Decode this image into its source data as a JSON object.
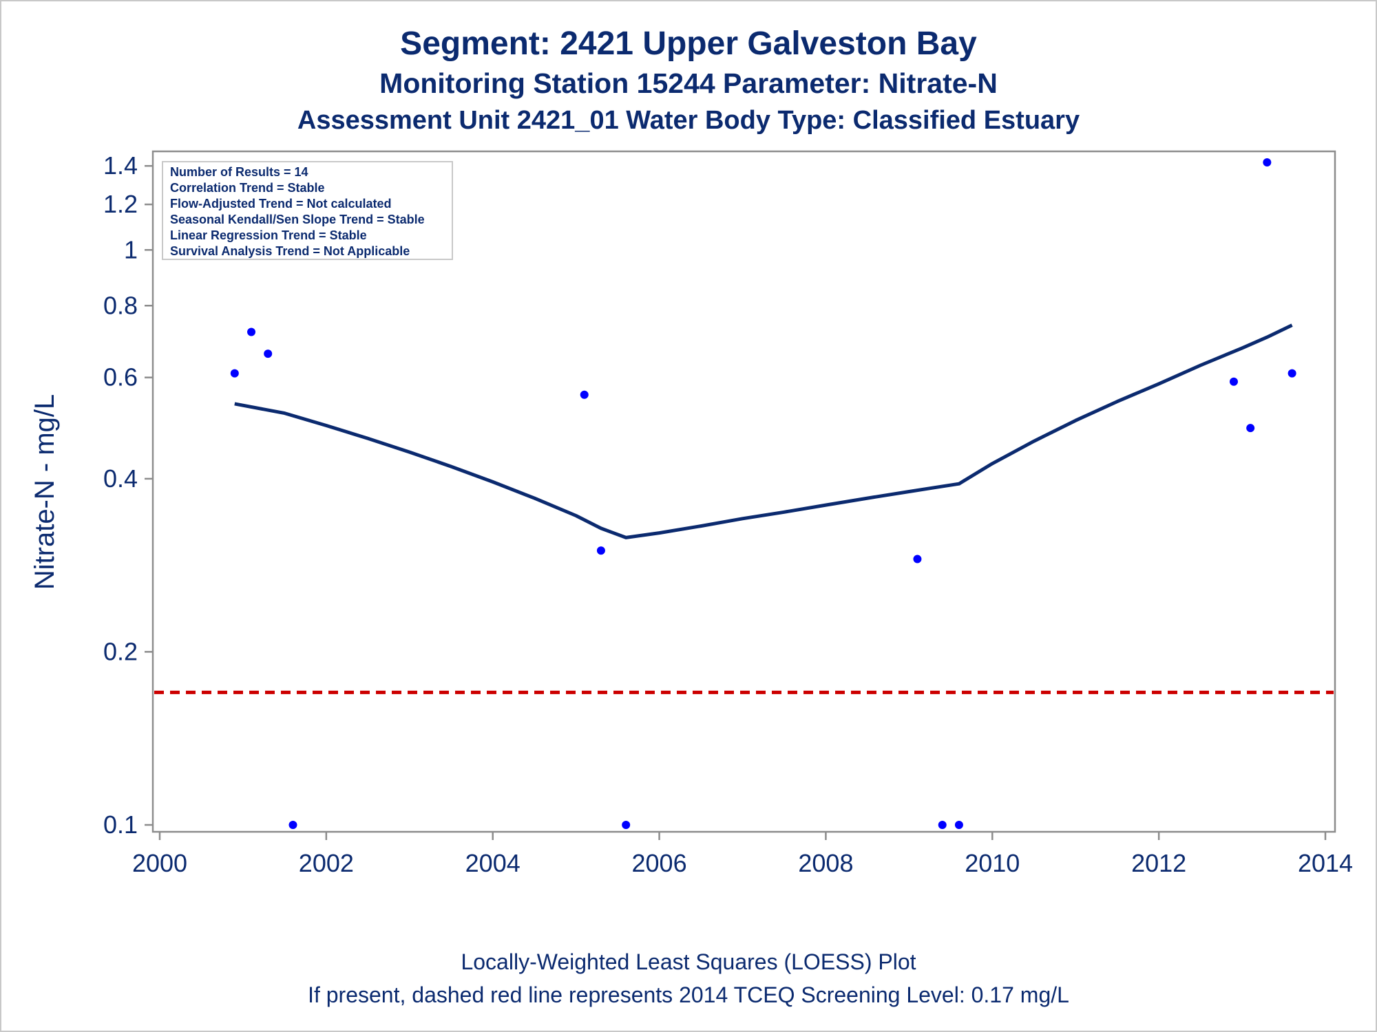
{
  "titles": {
    "line1": "Segment: 2421  Upper Galveston Bay",
    "line2": "Monitoring Station 15244 Parameter: Nitrate-N",
    "line3": "Assessment Unit 2421_01   Water Body Type: Classified Estuary"
  },
  "footer": {
    "line1": "Locally-Weighted Least Squares (LOESS) Plot",
    "line2": "If present, dashed red line represents 2014 TCEQ Screening Level: 0.17 mg/L"
  },
  "stats_box": [
    "Number of Results = 14",
    "Correlation Trend = Stable",
    "Flow-Adjusted Trend = Not calculated",
    "Seasonal Kendall/Sen Slope Trend = Stable",
    "Linear Regression Trend = Stable",
    "Survival Analysis Trend = Not Applicable"
  ],
  "colors": {
    "text": "#0b2a6f",
    "points": "#0000ff",
    "loess": "#0b2a6f",
    "screening_line": "#cc0000",
    "axis": "#8c8c8c"
  },
  "chart_data": {
    "type": "scatter",
    "ylabel": "Nitrate-N - mg/L",
    "xlabel": "",
    "y_scale": "log",
    "xlim": [
      2000,
      2014
    ],
    "ylim": [
      0.1,
      1.42
    ],
    "x_ticks": [
      2000,
      2002,
      2004,
      2006,
      2008,
      2010,
      2012,
      2014
    ],
    "y_ticks": [
      0.1,
      0.2,
      0.4,
      0.6,
      0.8,
      1,
      1.2,
      1.4
    ],
    "grid": false,
    "series": [
      {
        "type": "scatter",
        "points": [
          [
            2000.9,
            0.61
          ],
          [
            2001.1,
            0.72
          ],
          [
            2001.3,
            0.66
          ],
          [
            2001.6,
            0.1
          ],
          [
            2005.1,
            0.56
          ],
          [
            2005.3,
            0.3
          ],
          [
            2005.6,
            0.1
          ],
          [
            2009.1,
            0.29
          ],
          [
            2009.4,
            0.1
          ],
          [
            2009.6,
            0.1
          ],
          [
            2012.9,
            0.59
          ],
          [
            2013.1,
            0.49
          ],
          [
            2013.3,
            1.42
          ],
          [
            2013.6,
            0.61
          ]
        ]
      },
      {
        "type": "line",
        "style": "loess",
        "points": [
          [
            2000.9,
            0.54
          ],
          [
            2001.5,
            0.52
          ],
          [
            2002.0,
            0.495
          ],
          [
            2002.5,
            0.47
          ],
          [
            2003.0,
            0.445
          ],
          [
            2003.5,
            0.42
          ],
          [
            2004.0,
            0.395
          ],
          [
            2004.5,
            0.37
          ],
          [
            2005.0,
            0.345
          ],
          [
            2005.3,
            0.328
          ],
          [
            2005.6,
            0.316
          ],
          [
            2006.0,
            0.322
          ],
          [
            2006.5,
            0.331
          ],
          [
            2007.0,
            0.341
          ],
          [
            2007.5,
            0.35
          ],
          [
            2008.0,
            0.36
          ],
          [
            2008.5,
            0.37
          ],
          [
            2009.0,
            0.38
          ],
          [
            2009.3,
            0.386
          ],
          [
            2009.6,
            0.392
          ],
          [
            2010.0,
            0.425
          ],
          [
            2010.5,
            0.465
          ],
          [
            2011.0,
            0.505
          ],
          [
            2011.5,
            0.545
          ],
          [
            2012.0,
            0.585
          ],
          [
            2012.5,
            0.63
          ],
          [
            2013.0,
            0.675
          ],
          [
            2013.3,
            0.705
          ],
          [
            2013.6,
            0.74
          ]
        ]
      }
    ],
    "reference_line": {
      "y": 0.17,
      "style": "dashed"
    }
  }
}
